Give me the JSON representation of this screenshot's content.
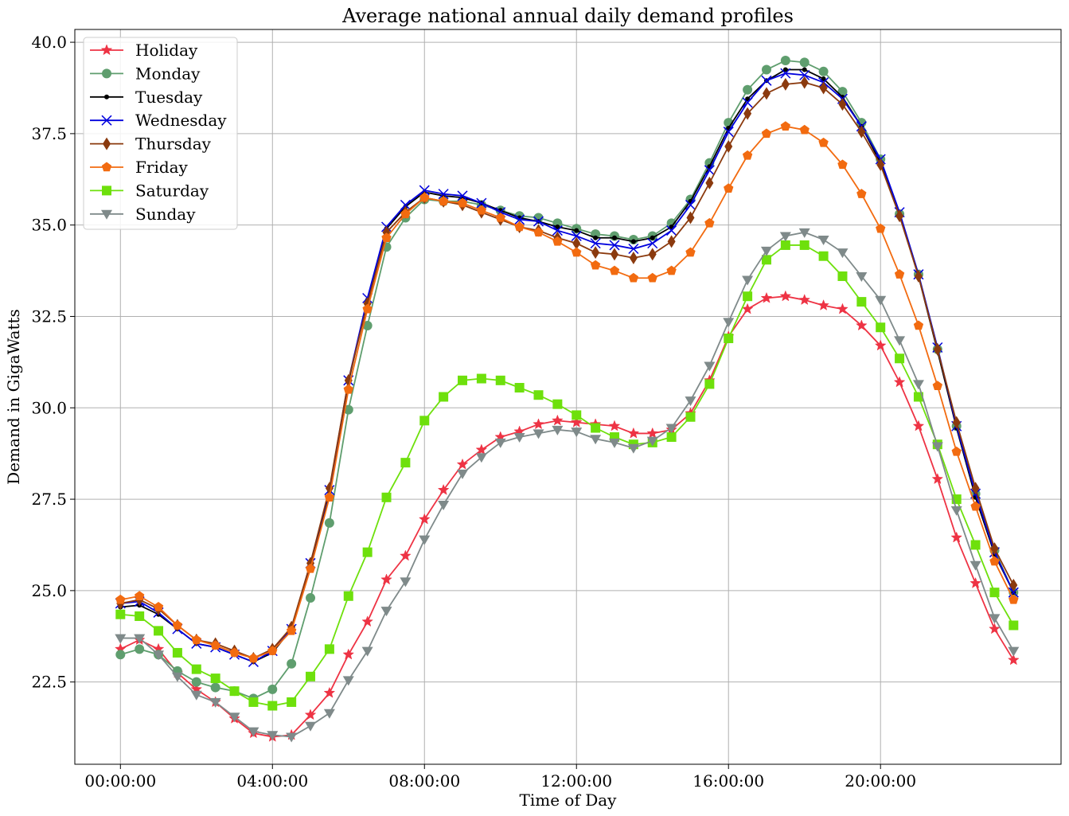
{
  "chart_data": {
    "type": "line",
    "title": "Average national annual daily demand profiles",
    "xlabel": "Time of Day",
    "ylabel": "Demand in GigaWatts",
    "x_tick_labels": [
      "00:00:00",
      "04:00:00",
      "08:00:00",
      "12:00:00",
      "16:00:00",
      "20:00:00"
    ],
    "x_tick_hours": [
      0,
      4,
      8,
      12,
      16,
      20
    ],
    "y_ticks": [
      22.5,
      25.0,
      27.5,
      30.0,
      32.5,
      35.0,
      37.5,
      40.0
    ],
    "y_tick_labels": [
      "22.5",
      "25.0",
      "27.5",
      "30.0",
      "32.5",
      "35.0",
      "37.5",
      "40.0"
    ],
    "xlim": [
      -1.2,
      24.75
    ],
    "ylim": [
      20.25,
      40.35
    ],
    "grid": true,
    "legend_position": "upper-left",
    "x": [
      0,
      0.5,
      1,
      1.5,
      2,
      2.5,
      3,
      3.5,
      4,
      4.5,
      5,
      5.5,
      6,
      6.5,
      7,
      7.5,
      8,
      8.5,
      9,
      9.5,
      10,
      10.5,
      11,
      11.5,
      12,
      12.5,
      13,
      13.5,
      14,
      14.5,
      15,
      15.5,
      16,
      16.5,
      17,
      17.5,
      18,
      18.5,
      19,
      19.5,
      20,
      20.5,
      21,
      21.5,
      22,
      22.5,
      23,
      23.5
    ],
    "series": [
      {
        "name": "Holiday",
        "color": "#ee3344",
        "marker": "star",
        "values": [
          23.4,
          23.65,
          23.4,
          22.75,
          22.3,
          21.95,
          21.5,
          21.1,
          21.0,
          21.05,
          21.6,
          22.2,
          23.25,
          24.15,
          25.3,
          25.95,
          26.95,
          27.75,
          28.45,
          28.85,
          29.2,
          29.35,
          29.55,
          29.65,
          29.6,
          29.55,
          29.5,
          29.3,
          29.3,
          29.4,
          29.85,
          30.75,
          31.95,
          32.7,
          33.0,
          33.05,
          32.95,
          32.8,
          32.7,
          32.25,
          31.7,
          30.7,
          29.5,
          28.05,
          26.45,
          25.2,
          23.95,
          23.1
        ]
      },
      {
        "name": "Monday",
        "color": "#5f9e6e",
        "marker": "circle",
        "values": [
          23.25,
          23.4,
          23.25,
          22.8,
          22.5,
          22.35,
          22.25,
          22.05,
          22.3,
          23.0,
          24.8,
          26.85,
          29.95,
          32.25,
          34.4,
          35.2,
          35.7,
          35.65,
          35.65,
          35.55,
          35.4,
          35.25,
          35.2,
          35.05,
          34.9,
          34.75,
          34.7,
          34.6,
          34.7,
          35.05,
          35.7,
          36.7,
          37.8,
          38.7,
          39.25,
          39.5,
          39.45,
          39.2,
          38.65,
          37.8,
          36.8,
          35.3,
          33.65,
          31.6,
          29.5,
          27.65,
          26.1,
          24.95
        ]
      },
      {
        "name": "Tuesday",
        "color": "#000000",
        "marker": "dot",
        "values": [
          24.55,
          24.6,
          24.35,
          23.95,
          23.55,
          23.45,
          23.25,
          23.05,
          23.3,
          23.95,
          25.7,
          27.7,
          30.7,
          32.95,
          34.9,
          35.5,
          35.9,
          35.8,
          35.75,
          35.6,
          35.4,
          35.2,
          35.1,
          34.95,
          34.85,
          34.65,
          34.65,
          34.55,
          34.65,
          34.95,
          35.65,
          36.6,
          37.65,
          38.45,
          38.95,
          39.25,
          39.25,
          39.0,
          38.5,
          37.7,
          36.7,
          35.3,
          33.6,
          31.55,
          29.45,
          27.55,
          26.0,
          24.95
        ]
      },
      {
        "name": "Wednesday",
        "color": "#0000dd",
        "marker": "x",
        "values": [
          24.65,
          24.7,
          24.4,
          23.95,
          23.55,
          23.45,
          23.25,
          23.05,
          23.35,
          23.95,
          25.75,
          27.75,
          30.75,
          33.0,
          34.95,
          35.55,
          35.95,
          35.85,
          35.8,
          35.6,
          35.35,
          35.15,
          35.1,
          34.85,
          34.7,
          34.5,
          34.45,
          34.35,
          34.5,
          34.85,
          35.55,
          36.5,
          37.55,
          38.35,
          38.95,
          39.15,
          39.1,
          38.9,
          38.45,
          37.7,
          36.8,
          35.35,
          33.65,
          31.65,
          29.5,
          27.65,
          26.05,
          24.95
        ]
      },
      {
        "name": "Thursday",
        "color": "#8b3a0e",
        "marker": "diamond",
        "values": [
          24.65,
          24.75,
          24.5,
          24.05,
          23.65,
          23.55,
          23.35,
          23.15,
          23.4,
          24.0,
          25.75,
          27.8,
          30.75,
          32.85,
          34.8,
          35.35,
          35.75,
          35.65,
          35.55,
          35.35,
          35.15,
          34.95,
          34.85,
          34.65,
          34.5,
          34.25,
          34.2,
          34.1,
          34.2,
          34.55,
          35.2,
          36.15,
          37.15,
          38.05,
          38.6,
          38.85,
          38.9,
          38.75,
          38.3,
          37.55,
          36.65,
          35.25,
          33.6,
          31.6,
          29.6,
          27.8,
          26.15,
          25.15
        ]
      },
      {
        "name": "Friday",
        "color": "#f26b10",
        "marker": "pentagon",
        "values": [
          24.75,
          24.85,
          24.55,
          24.05,
          23.65,
          23.5,
          23.3,
          23.15,
          23.35,
          23.9,
          25.6,
          27.55,
          30.5,
          32.7,
          34.65,
          35.3,
          35.75,
          35.65,
          35.6,
          35.4,
          35.2,
          34.95,
          34.8,
          34.55,
          34.25,
          33.9,
          33.75,
          33.55,
          33.55,
          33.75,
          34.25,
          35.05,
          36.0,
          36.9,
          37.5,
          37.7,
          37.6,
          37.25,
          36.65,
          35.85,
          34.9,
          33.65,
          32.25,
          30.6,
          28.8,
          27.3,
          25.8,
          24.75
        ]
      },
      {
        "name": "Saturday",
        "color": "#6ee00c",
        "marker": "square",
        "values": [
          24.35,
          24.3,
          23.9,
          23.3,
          22.85,
          22.6,
          22.25,
          21.95,
          21.85,
          21.95,
          22.65,
          23.4,
          24.85,
          26.05,
          27.55,
          28.5,
          29.65,
          30.3,
          30.75,
          30.8,
          30.75,
          30.55,
          30.35,
          30.1,
          29.8,
          29.45,
          29.2,
          29.0,
          29.05,
          29.2,
          29.75,
          30.65,
          31.9,
          33.05,
          34.05,
          34.45,
          34.45,
          34.15,
          33.6,
          32.9,
          32.2,
          31.35,
          30.3,
          29.0,
          27.5,
          26.25,
          24.95,
          24.05
        ]
      },
      {
        "name": "Sunday",
        "color": "#7f8a8a",
        "marker": "triangle-down",
        "values": [
          23.7,
          23.7,
          23.25,
          22.65,
          22.15,
          21.95,
          21.55,
          21.15,
          21.05,
          21.0,
          21.3,
          21.65,
          22.55,
          23.35,
          24.45,
          25.25,
          26.4,
          27.35,
          28.2,
          28.65,
          29.05,
          29.2,
          29.3,
          29.4,
          29.35,
          29.15,
          29.05,
          28.9,
          29.1,
          29.45,
          30.2,
          31.15,
          32.35,
          33.5,
          34.3,
          34.7,
          34.8,
          34.6,
          34.25,
          33.6,
          32.95,
          31.85,
          30.65,
          28.95,
          27.2,
          25.7,
          24.25,
          23.35
        ]
      }
    ]
  }
}
